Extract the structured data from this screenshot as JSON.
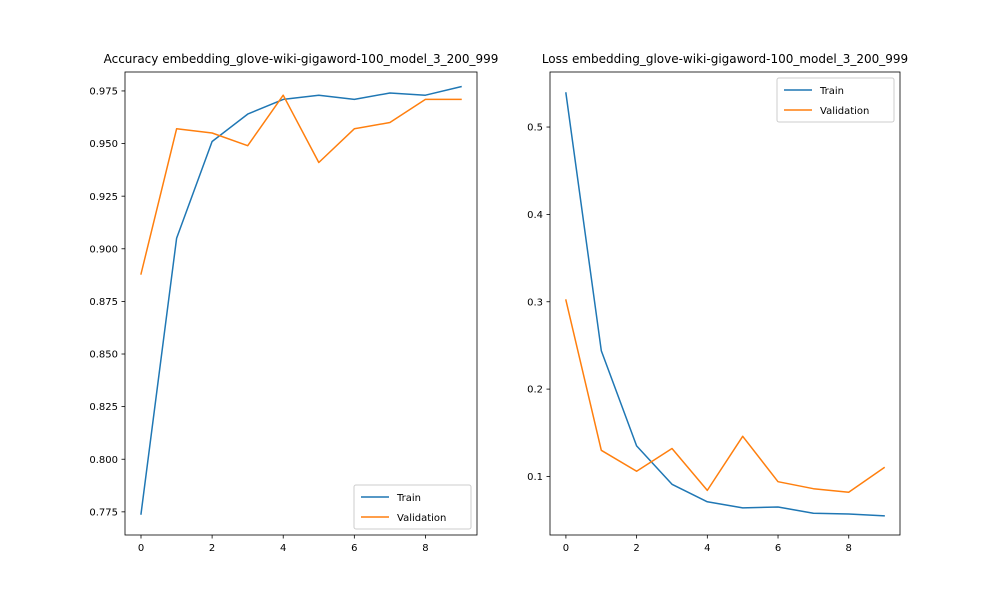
{
  "colors": {
    "train": "#1f77b4",
    "validation": "#ff7f0e"
  },
  "chart_data": [
    {
      "type": "line",
      "title": "Accuracy embedding_glove-wiki-gigaword-100_model_3_200_999",
      "xlabel": "",
      "ylabel": "",
      "x": [
        0,
        1,
        2,
        3,
        4,
        5,
        6,
        7,
        8,
        9
      ],
      "xlim": [
        -0.45,
        9.45
      ],
      "ylim": [
        0.764,
        0.984
      ],
      "xticks": [
        0,
        2,
        4,
        6,
        8
      ],
      "yticks": [
        0.775,
        0.8,
        0.825,
        0.85,
        0.875,
        0.9,
        0.925,
        0.95,
        0.975
      ],
      "xtick_labels": [
        "0",
        "2",
        "4",
        "6",
        "8"
      ],
      "ytick_labels": [
        "0.775",
        "0.800",
        "0.825",
        "0.850",
        "0.875",
        "0.900",
        "0.925",
        "0.950",
        "0.975"
      ],
      "grid": false,
      "legend_position": "lower-right",
      "series": [
        {
          "name": "Train",
          "color": "#1f77b4",
          "values": [
            0.774,
            0.905,
            0.951,
            0.964,
            0.971,
            0.973,
            0.971,
            0.974,
            0.973,
            0.977
          ]
        },
        {
          "name": "Validation",
          "color": "#ff7f0e",
          "values": [
            0.888,
            0.957,
            0.955,
            0.949,
            0.973,
            0.941,
            0.957,
            0.96,
            0.971,
            0.971
          ]
        }
      ]
    },
    {
      "type": "line",
      "title": "Loss embedding_glove-wiki-gigaword-100_model_3_200_999",
      "xlabel": "",
      "ylabel": "",
      "x": [
        0,
        1,
        2,
        3,
        4,
        5,
        6,
        7,
        8,
        9
      ],
      "xlim": [
        -0.45,
        9.45
      ],
      "ylim": [
        0.033,
        0.563
      ],
      "xticks": [
        0,
        2,
        4,
        6,
        8
      ],
      "yticks": [
        0.1,
        0.2,
        0.3,
        0.4,
        0.5
      ],
      "xtick_labels": [
        "0",
        "2",
        "4",
        "6",
        "8"
      ],
      "ytick_labels": [
        "0.1",
        "0.2",
        "0.3",
        "0.4",
        "0.5"
      ],
      "grid": false,
      "legend_position": "upper-right",
      "series": [
        {
          "name": "Train",
          "color": "#1f77b4",
          "values": [
            0.539,
            0.244,
            0.135,
            0.091,
            0.071,
            0.064,
            0.065,
            0.058,
            0.057,
            0.055
          ]
        },
        {
          "name": "Validation",
          "color": "#ff7f0e",
          "values": [
            0.302,
            0.13,
            0.106,
            0.132,
            0.084,
            0.146,
            0.094,
            0.086,
            0.082,
            0.11
          ]
        }
      ]
    }
  ]
}
